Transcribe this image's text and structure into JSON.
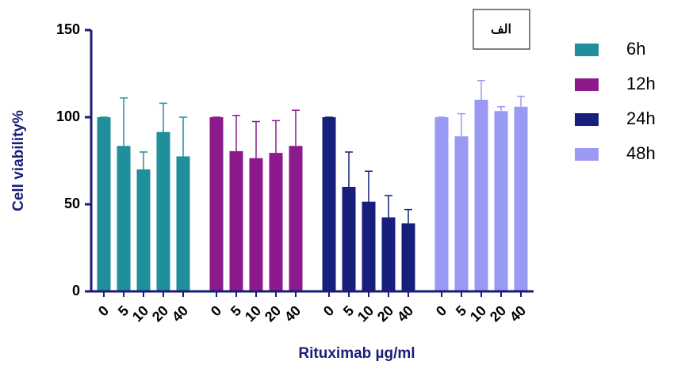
{
  "chart_data": {
    "type": "bar",
    "annotation": "الف",
    "x_label": "Rituximab µg/ml",
    "y_label": "Cell viability%",
    "categories": [
      "0",
      "5",
      "10",
      "20",
      "40"
    ],
    "series": [
      {
        "name": "6h",
        "color": "#1e8f9b",
        "values": [
          100,
          83.5,
          70,
          91.5,
          77.5
        ],
        "errors": [
          0,
          27.5,
          10,
          16.5,
          22.5
        ]
      },
      {
        "name": "12h",
        "color": "#8c1a8c",
        "values": [
          100,
          80.5,
          76.5,
          79.5,
          83.5
        ],
        "errors": [
          0,
          20.5,
          21,
          18.5,
          20.5
        ]
      },
      {
        "name": "24h",
        "color": "#16207c",
        "values": [
          100,
          60,
          51.5,
          42.5,
          39
        ],
        "errors": [
          0,
          20,
          17.5,
          12.5,
          8
        ]
      },
      {
        "name": "48h",
        "color": "#9a9af5",
        "values": [
          100,
          89,
          110,
          103.5,
          106
        ],
        "errors": [
          0,
          13,
          11,
          2.5,
          6
        ]
      }
    ],
    "ylim": [
      0,
      150
    ],
    "yticks": [
      0,
      50,
      100,
      150
    ]
  }
}
